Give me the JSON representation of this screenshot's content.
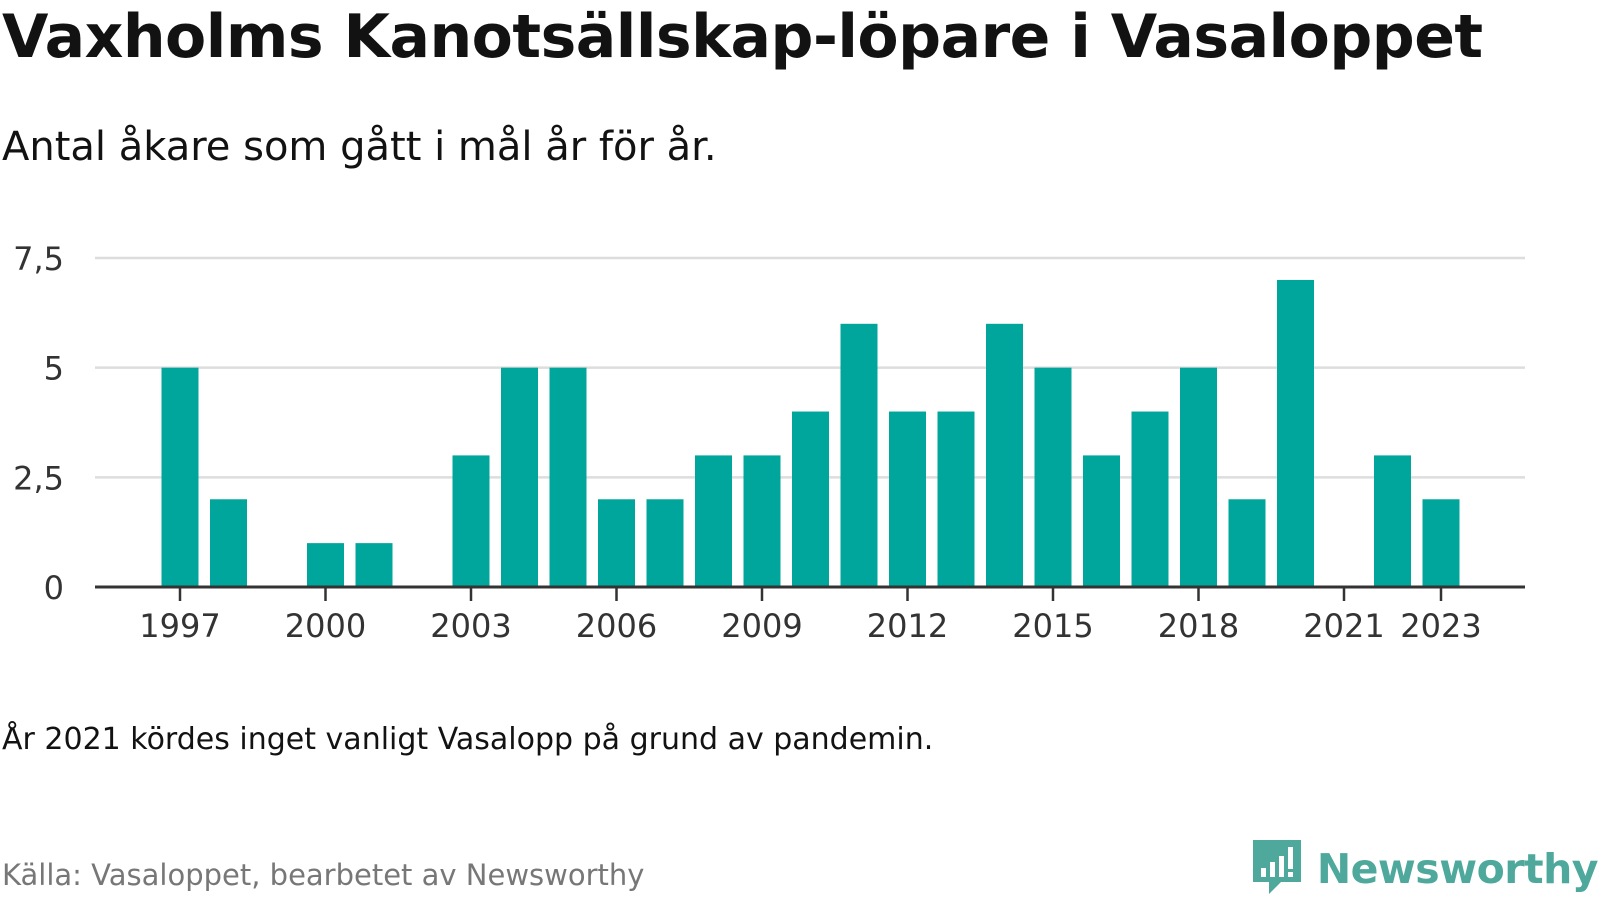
{
  "title": "Vaxholms Kanotsällskap-löpare i Vasaloppet",
  "subtitle": "Antal åkare som gått i mål år för år.",
  "note": "År 2021 kördes inget vanligt Vasalopp på grund av pandemin.",
  "source": "Källa: Vasaloppet, bearbetet av Newsworthy",
  "brand": {
    "name": "Newsworthy",
    "icon": "newsworthy-logo-icon",
    "color": "#4fa89c"
  },
  "colors": {
    "bar": "#00a59b",
    "grid": "#dddddd",
    "axis": "#333333",
    "tick_text": "#333333"
  },
  "chart_data": {
    "type": "bar",
    "x": [
      1997,
      1998,
      1999,
      2000,
      2001,
      2002,
      2003,
      2004,
      2005,
      2006,
      2007,
      2008,
      2009,
      2010,
      2011,
      2012,
      2013,
      2014,
      2015,
      2016,
      2017,
      2018,
      2019,
      2020,
      2021,
      2022,
      2023
    ],
    "values": [
      5,
      2,
      0,
      1,
      1,
      0,
      3,
      5,
      5,
      2,
      2,
      3,
      3,
      4,
      6,
      4,
      4,
      6,
      5,
      3,
      4,
      5,
      2,
      7,
      0,
      3,
      2
    ],
    "x_tick_labels": [
      "1997",
      "2000",
      "2003",
      "2006",
      "2009",
      "2012",
      "2015",
      "2018",
      "2021",
      "2023"
    ],
    "y_tick_values": [
      0,
      2.5,
      5,
      7.5
    ],
    "y_tick_labels": [
      "0",
      "2,5",
      "5",
      "7,5"
    ],
    "ylim": [
      0,
      7.5
    ],
    "xlabel": "",
    "ylabel": "",
    "grid": true,
    "legend": false
  }
}
